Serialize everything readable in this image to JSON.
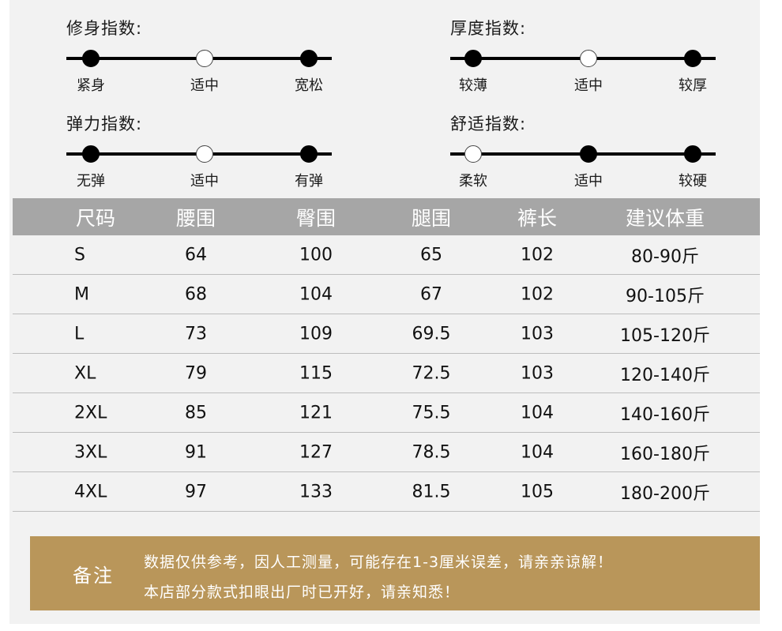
{
  "indices": [
    {
      "title": "修身指数:",
      "labels": [
        "紧身",
        "适中",
        "宽松"
      ],
      "filled": [
        true,
        false,
        true
      ]
    },
    {
      "title": "厚度指数:",
      "labels": [
        "较薄",
        "适中",
        "较厚"
      ],
      "filled": [
        true,
        false,
        true
      ]
    },
    {
      "title": "弹力指数:",
      "labels": [
        "无弹",
        "适中",
        "有弹"
      ],
      "filled": [
        true,
        false,
        true
      ]
    },
    {
      "title": "舒适指数:",
      "labels": [
        "柔软",
        "适中",
        "较硬"
      ],
      "filled": [
        false,
        true,
        true
      ]
    }
  ],
  "table": {
    "headers": [
      "尺码",
      "腰围",
      "臀围",
      "腿围",
      "裤长",
      "建议体重"
    ],
    "rows": [
      [
        "S",
        "64",
        "100",
        "65",
        "102",
        "80-90斤"
      ],
      [
        "M",
        "68",
        "104",
        "67",
        "102",
        "90-105斤"
      ],
      [
        "L",
        "73",
        "109",
        "69.5",
        "103",
        "105-120斤"
      ],
      [
        "XL",
        "79",
        "115",
        "72.5",
        "103",
        "120-140斤"
      ],
      [
        "2XL",
        "85",
        "121",
        "75.5",
        "104",
        "140-160斤"
      ],
      [
        "3XL",
        "91",
        "127",
        "78.5",
        "104",
        "160-180斤"
      ],
      [
        "4XL",
        "97",
        "133",
        "81.5",
        "105",
        "180-200斤"
      ]
    ]
  },
  "note": {
    "label": "备注",
    "line1": "数据仅供参考，因人工测量，可能存在1-3厘米误差，请亲亲谅解！",
    "line2": "本店部分款式扣眼出厂时已开好，请亲知悉！"
  }
}
